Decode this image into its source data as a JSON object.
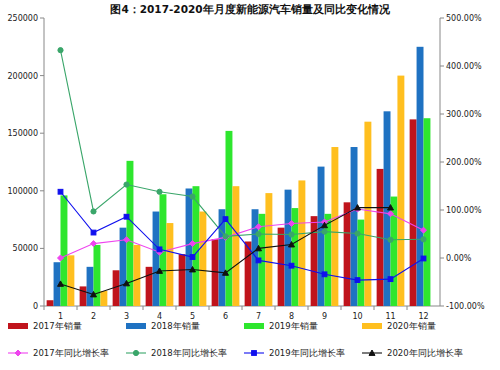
{
  "chart_data": {
    "type": "bar",
    "title": "图4：2017-2020年月度新能源汽车销量及同比变化情况",
    "categories": [
      "1",
      "2",
      "3",
      "4",
      "5",
      "6",
      "7",
      "8",
      "9",
      "10",
      "11",
      "12"
    ],
    "ylim": [
      0,
      250000
    ],
    "yticks": [
      0,
      50000,
      100000,
      150000,
      200000,
      250000
    ],
    "y2lim": [
      -100,
      500
    ],
    "y2ticks": [
      {
        "value": -100,
        "label": "-100.00%"
      },
      {
        "value": 0,
        "label": "0.00%"
      },
      {
        "value": 100,
        "label": "100.00%"
      },
      {
        "value": 200,
        "label": "200.00%"
      },
      {
        "value": 300,
        "label": "300.00%"
      },
      {
        "value": 400,
        "label": "400.00%"
      },
      {
        "value": 500,
        "label": "500.00%"
      }
    ],
    "grid": false,
    "legend": "bottom",
    "series": [
      {
        "name": "2017年销量",
        "type": "bar",
        "color": "#c0141c",
        "values": [
          5000,
          17000,
          31000,
          34000,
          45000,
          58000,
          56000,
          68000,
          78000,
          90000,
          119000,
          162000
        ]
      },
      {
        "name": "2018年销量",
        "type": "bar",
        "color": "#1f72c2",
        "values": [
          38000,
          34000,
          68000,
          82000,
          102000,
          84000,
          84000,
          101000,
          121000,
          138000,
          169000,
          225000
        ]
      },
      {
        "name": "2019年销量",
        "type": "bar",
        "color": "#2ee62e",
        "values": [
          96000,
          53000,
          126000,
          97000,
          104000,
          152000,
          80000,
          85000,
          80000,
          75000,
          95000,
          163000
        ]
      },
      {
        "name": "2020年销量",
        "type": "bar",
        "color": "#ffbf1f",
        "values": [
          44000,
          13000,
          53000,
          72000,
          82000,
          104000,
          98000,
          109000,
          138000,
          160000,
          200000,
          null
        ]
      },
      {
        "name": "2017年同比增长率",
        "type": "line",
        "axis": "y2",
        "color": "#ee44ee",
        "marker": "diamond",
        "values": [
          0,
          30,
          38,
          12,
          30,
          43,
          65,
          72,
          75,
          102,
          92,
          58
        ]
      },
      {
        "name": "2018年同比增长率",
        "type": "line",
        "axis": "y2",
        "color": "#3aa66a",
        "marker": "circle",
        "values": [
          433,
          97,
          153,
          138,
          128,
          45,
          50,
          49,
          55,
          51,
          38,
          39
        ]
      },
      {
        "name": "2019年同比增长率",
        "type": "line",
        "axis": "y2",
        "color": "#1010ee",
        "marker": "square",
        "values": [
          138,
          53,
          86,
          18,
          2,
          81,
          -5,
          -16,
          -34,
          -46,
          -44,
          -1
        ]
      },
      {
        "name": "2020年同比增长率",
        "type": "line",
        "axis": "y2",
        "color": "#111111",
        "marker": "triangle",
        "values": [
          -54,
          -76,
          -53,
          -27,
          -24,
          -31,
          20,
          28,
          68,
          105,
          105,
          null
        ]
      }
    ]
  }
}
